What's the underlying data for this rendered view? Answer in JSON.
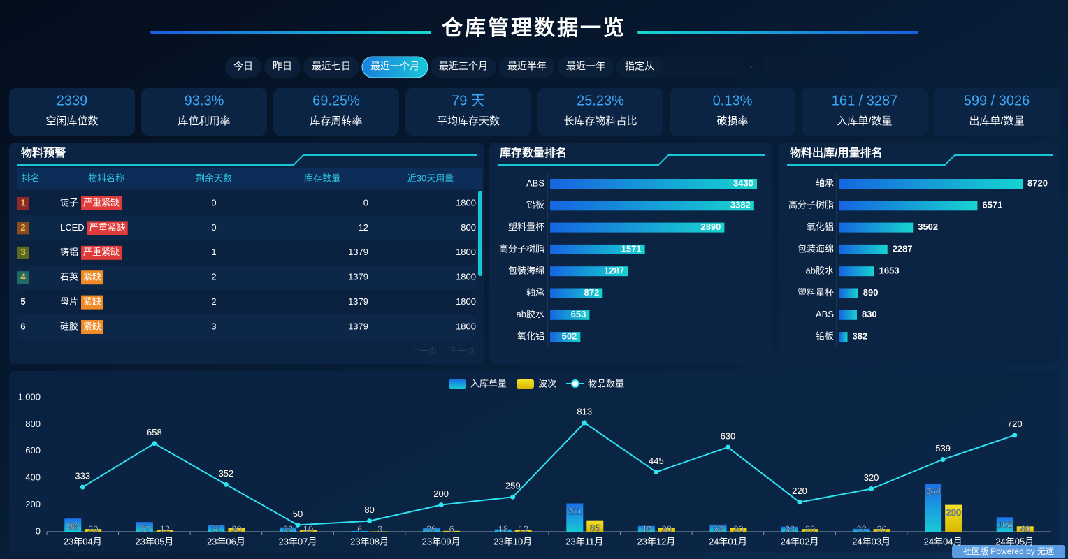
{
  "header": {
    "title": "仓库管理数据一览"
  },
  "filters": {
    "buttons": [
      "今日",
      "昨日",
      "最近七日",
      "最近一个月",
      "最近三个月",
      "最近半年",
      "最近一年",
      "指定从"
    ],
    "active": 3
  },
  "kpis": [
    {
      "value": "2339",
      "label": "空闲库位数"
    },
    {
      "value": "93.3%",
      "label": "库位利用率"
    },
    {
      "value": "69.25%",
      "label": "库存周转率"
    },
    {
      "value": "79 天",
      "label": "平均库存天数"
    },
    {
      "value": "25.23%",
      "label": "长库存物料占比"
    },
    {
      "value": "0.13%",
      "label": "破损率"
    },
    {
      "value": "161 / 3287",
      "label": "入库单/数量"
    },
    {
      "value": "599 / 3026",
      "label": "出库单/数量"
    }
  ],
  "alert_panel": {
    "title": "物料预警",
    "headers": [
      "排名",
      "物料名称",
      "剩余天数",
      "库存数量",
      "近30天用量"
    ],
    "rows": [
      {
        "rank": 1,
        "rank_color": "#8a2a2a",
        "name": "锭子",
        "tag": "严重紧缺",
        "tag_color": "#e03a3a",
        "days": 0,
        "stock": 0,
        "usage": 1800
      },
      {
        "rank": 2,
        "rank_color": "#8a4a22",
        "name": "LCED",
        "tag": "严重紧缺",
        "tag_color": "#e03a3a",
        "days": 0,
        "stock": 12,
        "usage": 800
      },
      {
        "rank": 3,
        "rank_color": "#5a6a22",
        "name": "铸铝",
        "tag": "严重紧缺",
        "tag_color": "#e03a3a",
        "days": 1,
        "stock": 1379,
        "usage": 1800
      },
      {
        "rank": 4,
        "rank_color": "#1f6a66",
        "name": "石英",
        "tag": "紧缺",
        "tag_color": "#f08a24",
        "days": 2,
        "stock": 1379,
        "usage": 1800
      },
      {
        "rank": 5,
        "name": "母片",
        "tag": "紧缺",
        "tag_color": "#f08a24",
        "days": 2,
        "stock": 1379,
        "usage": 1800
      },
      {
        "rank": 6,
        "name": "硅胶",
        "tag": "紧缺",
        "tag_color": "#f08a24",
        "days": 3,
        "stock": 1379,
        "usage": 1800
      }
    ],
    "prev": "上一页",
    "next": "下一页"
  },
  "footer": {
    "badge": "社区版 Powered by 无远"
  },
  "chart_data": [
    {
      "type": "bar",
      "orientation": "horizontal",
      "title": "库存数量排名",
      "categories": [
        "ABS",
        "铅板",
        "塑料量杯",
        "高分子树脂",
        "包装海绵",
        "轴承",
        "ab胶水",
        "氧化铝"
      ],
      "values": [
        3430,
        3382,
        2890,
        1571,
        1287,
        872,
        653,
        502
      ],
      "color": [
        "#1565e0",
        "#17d4cf"
      ]
    },
    {
      "type": "bar",
      "orientation": "horizontal",
      "title": "物料出库/用量排名",
      "categories": [
        "轴承",
        "高分子树脂",
        "氧化铝",
        "包装海绵",
        "ab胶水",
        "塑料量杯",
        "ABS",
        "铅板"
      ],
      "values": [
        8720,
        6571,
        3502,
        2287,
        1653,
        890,
        830,
        382
      ],
      "color": [
        "#1565e0",
        "#17d4cf"
      ]
    },
    {
      "type": "combo",
      "categories": [
        "23年04月",
        "23年05月",
        "23年06月",
        "23年07月",
        "23年08月",
        "23年09月",
        "23年10月",
        "23年11月",
        "23年12月",
        "24年01月",
        "24年02月",
        "24年03月",
        "24年04月",
        "24年05月"
      ],
      "series": [
        {
          "name": "入库单量",
          "type": "bar",
          "color": [
            "#1a6fe8",
            "#19c9d6"
          ],
          "values": [
            98,
            72,
            51,
            33,
            6,
            29,
            18,
            211,
            43,
            53,
            38,
            22,
            360,
            108
          ]
        },
        {
          "name": "波次",
          "type": "bar",
          "color": [
            "#f5e12a",
            "#d8b800"
          ],
          "values": [
            20,
            12,
            30,
            10,
            3,
            6,
            12,
            85,
            30,
            30,
            20,
            20,
            200,
            40
          ]
        },
        {
          "name": "物品数量",
          "type": "line",
          "color": [
            "#2fe3f0",
            "#2fe3f0"
          ],
          "values": [
            333,
            658,
            352,
            50,
            80,
            200,
            259,
            813,
            445,
            630,
            220,
            320,
            539,
            720
          ]
        }
      ],
      "ylim": [
        0,
        1000
      ],
      "yticks": [
        0,
        200,
        400,
        600,
        800,
        {
          "value": 1000,
          "label": "1,000"
        }
      ],
      "legend": "top"
    }
  ]
}
